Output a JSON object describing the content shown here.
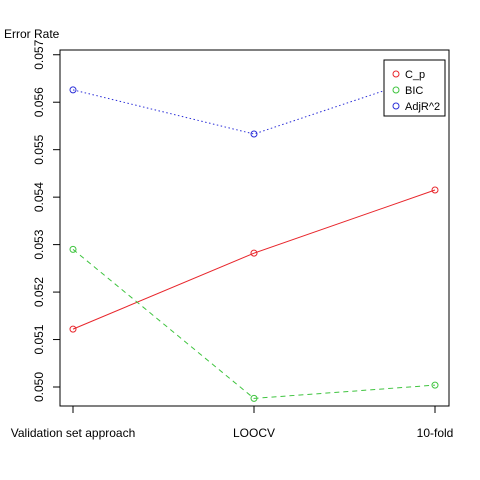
{
  "chart_data": {
    "type": "line",
    "title": "",
    "xlabel": "",
    "ylabel": "Error Rate",
    "categories": [
      "Validation set approach",
      "LOOCV",
      "10-fold"
    ],
    "ylim": [
      0.0496,
      0.0571
    ],
    "yticks": [
      "0.050",
      "0.051",
      "0.052",
      "0.053",
      "0.054",
      "0.055",
      "0.056",
      "0.057"
    ],
    "grid": false,
    "legend_position": "top-right",
    "series": [
      {
        "name": "C_p",
        "values": [
          0.05122,
          0.05282,
          0.05415
        ],
        "color": "#e8262c",
        "line_style": "solid",
        "marker": "open-circle"
      },
      {
        "name": "BIC",
        "values": [
          0.0529,
          0.04976,
          0.05004
        ],
        "color": "#3fc43f",
        "line_style": "dashed",
        "marker": "open-circle"
      },
      {
        "name": "AdjR^2",
        "values": [
          0.05626,
          0.05533,
          0.0566
        ],
        "color": "#2b2fd8",
        "line_style": "dotted",
        "marker": "open-circle"
      }
    ]
  }
}
